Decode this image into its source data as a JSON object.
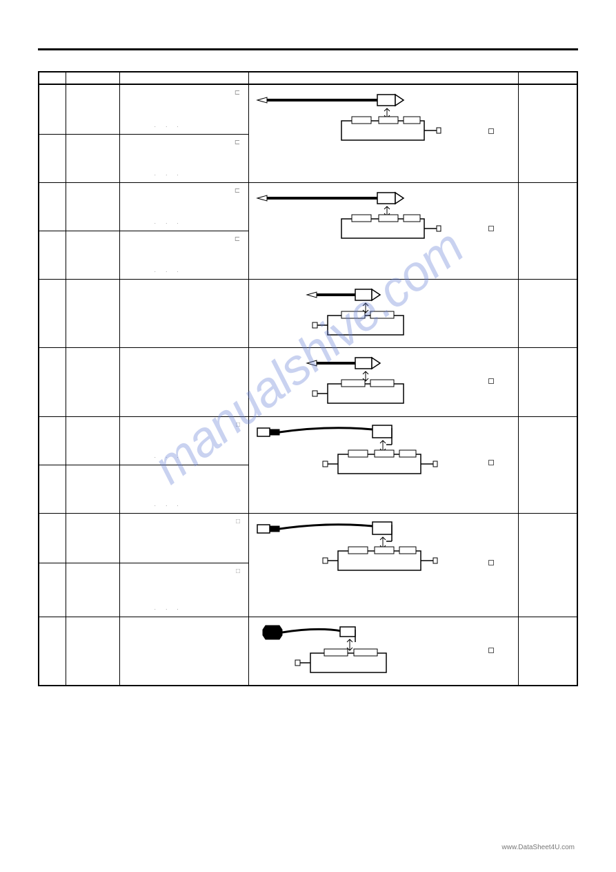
{
  "watermark": "manualshive.com",
  "footer": "www.DataSheet4U.com",
  "table": {
    "headers": [
      "",
      "",
      "",
      "",
      ""
    ],
    "rows": [
      {
        "marker": "⊏",
        "dots": ". . .",
        "height": "row-h1",
        "diagram_type": "long-cable",
        "motor_ports": 3,
        "diagram_rowspan": 2,
        "has_square": true
      },
      {
        "marker": "⊏",
        "dots": ". . .",
        "height": "row-h2"
      },
      {
        "marker": "⊏",
        "dots": ". . .",
        "height": "row-h2",
        "diagram_type": "long-cable",
        "motor_ports": 3,
        "diagram_rowspan": 2,
        "has_square": true
      },
      {
        "marker": "⊏",
        "dots": ". . .",
        "height": "row-h2"
      },
      {
        "marker": "",
        "dots": "",
        "height": "row-h3",
        "diagram_type": "short-cable",
        "motor_ports": 2,
        "diagram_rowspan": 1
      },
      {
        "marker": "",
        "dots": "",
        "height": "row-h4",
        "diagram_type": "short-cable",
        "motor_ports": 2,
        "diagram_rowspan": 1,
        "has_square": true
      },
      {
        "marker": "□",
        "dots": ". . .",
        "height": "row-h2",
        "diagram_type": "connector-cable",
        "motor_ports": 3,
        "diagram_rowspan": 2,
        "has_square": true
      },
      {
        "marker": "",
        "dots": ". . .",
        "height": "row-h2"
      },
      {
        "marker": "□",
        "dots": "",
        "height": "row-h1",
        "diagram_type": "connector-cable",
        "motor_ports": 3,
        "diagram_rowspan": 2,
        "has_square": true
      },
      {
        "marker": "□",
        "dots": ". . .",
        "height": "row-h5"
      },
      {
        "marker": "",
        "dots": "",
        "height": "row-h6",
        "diagram_type": "solid-connector",
        "motor_ports": 2,
        "diagram_rowspan": 1,
        "has_square": true
      }
    ]
  },
  "diagrams": {
    "colors": {
      "stroke": "#000000",
      "fill_white": "#ffffff",
      "fill_black": "#000000"
    }
  }
}
